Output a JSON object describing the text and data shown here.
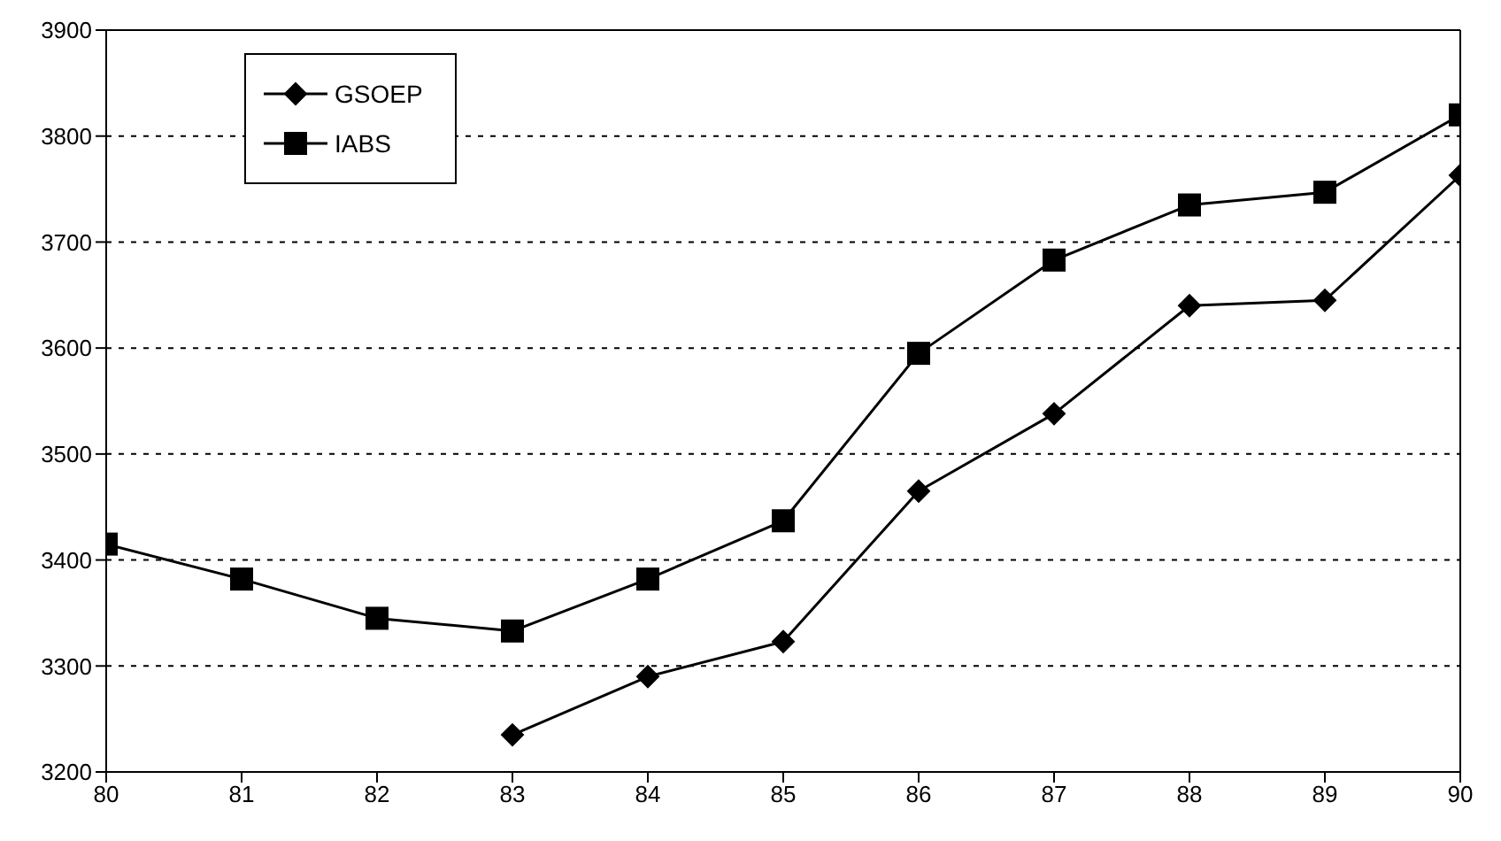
{
  "chart_data": {
    "type": "line",
    "x": [
      80,
      81,
      82,
      83,
      84,
      85,
      86,
      87,
      88,
      89,
      90
    ],
    "series": [
      {
        "name": "GSOEP",
        "color": "#000000",
        "marker": "diamond",
        "values": [
          null,
          null,
          null,
          3235,
          3290,
          3323,
          3465,
          3538,
          3640,
          3645,
          3763
        ]
      },
      {
        "name": "IABS",
        "color": "#000000",
        "marker": "square",
        "values": [
          3415,
          3382,
          3345,
          3333,
          3382,
          3437,
          3595,
          3683,
          3735,
          3747,
          3820
        ]
      }
    ],
    "xlim": [
      80,
      90
    ],
    "xticks": [
      80,
      81,
      82,
      83,
      84,
      85,
      86,
      87,
      88,
      89,
      90
    ],
    "ylim": [
      3200,
      3900
    ],
    "yticks": [
      3200,
      3300,
      3400,
      3500,
      3600,
      3700,
      3800,
      3900
    ],
    "grid": "y",
    "legend": "top left",
    "line_style": "solid"
  }
}
